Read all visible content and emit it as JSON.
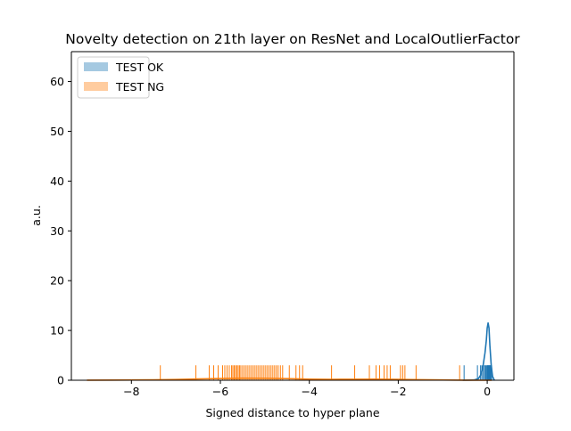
{
  "chart_data": {
    "type": "area",
    "title": "Novelty detection on 21th layer on ResNet and LocalOutlierFactor",
    "xlabel": "Signed distance to hyper plane",
    "ylabel": "a.u.",
    "xlim": [
      -9.35,
      0.6
    ],
    "ylim": [
      0,
      66
    ],
    "xticks": [
      -8,
      -6,
      -4,
      -2,
      0
    ],
    "xtick_labels": [
      "−8",
      "−6",
      "−4",
      "−2",
      "0"
    ],
    "yticks": [
      0,
      10,
      20,
      30,
      40,
      50,
      60
    ],
    "ytick_labels": [
      "0",
      "10",
      "20",
      "30",
      "40",
      "50",
      "60"
    ],
    "grid": false,
    "legend_position": "top-left",
    "series": [
      {
        "name": "TEST OK",
        "color": "#1f77b4",
        "rug_height": 3.0,
        "rug": [
          -0.52,
          -0.22,
          -0.15,
          -0.12,
          -0.09,
          -0.06,
          -0.04,
          -0.02,
          0.0,
          0.01,
          0.02,
          0.03,
          0.04,
          0.05,
          0.06,
          0.07,
          0.08,
          0.1
        ],
        "kde": {
          "x": [
            -0.55,
            -0.3,
            -0.2,
            -0.15,
            -0.1,
            -0.05,
            -0.02,
            0.0,
            0.02,
            0.04,
            0.06,
            0.09,
            0.12,
            0.16
          ],
          "y": [
            0,
            0.05,
            0.3,
            1.0,
            2.5,
            5.5,
            8.0,
            10.5,
            11.5,
            10.5,
            7.0,
            3.0,
            0.8,
            0
          ]
        }
      },
      {
        "name": "TEST NG",
        "color": "#ff7f0e",
        "rug_height": 3.0,
        "rug": [
          -7.35,
          -6.55,
          -6.25,
          -6.15,
          -6.05,
          -5.95,
          -5.9,
          -5.85,
          -5.8,
          -5.75,
          -5.72,
          -5.69,
          -5.66,
          -5.63,
          -5.6,
          -5.57,
          -5.54,
          -5.5,
          -5.46,
          -5.42,
          -5.38,
          -5.34,
          -5.3,
          -5.26,
          -5.22,
          -5.18,
          -5.14,
          -5.1,
          -5.06,
          -5.02,
          -4.98,
          -4.94,
          -4.9,
          -4.86,
          -4.82,
          -4.78,
          -4.74,
          -4.7,
          -4.65,
          -4.6,
          -4.45,
          -4.3,
          -4.22,
          -4.15,
          -3.5,
          -2.98,
          -2.65,
          -2.5,
          -2.42,
          -2.32,
          -2.25,
          -2.18,
          -1.95,
          -1.9,
          -1.85,
          -1.6,
          -0.62
        ],
        "kde": {
          "x": [
            -9.0,
            -8.0,
            -7.5,
            -7.0,
            -6.5,
            -6.0,
            -5.5,
            -5.0,
            -4.5,
            -4.0,
            -3.5,
            -3.0,
            -2.5,
            -2.0,
            -1.5,
            -1.0,
            -0.5,
            0.1
          ],
          "y": [
            0.02,
            0.05,
            0.08,
            0.15,
            0.25,
            0.35,
            0.42,
            0.4,
            0.32,
            0.22,
            0.18,
            0.2,
            0.22,
            0.18,
            0.1,
            0.05,
            0.02,
            0.0
          ]
        }
      }
    ]
  }
}
